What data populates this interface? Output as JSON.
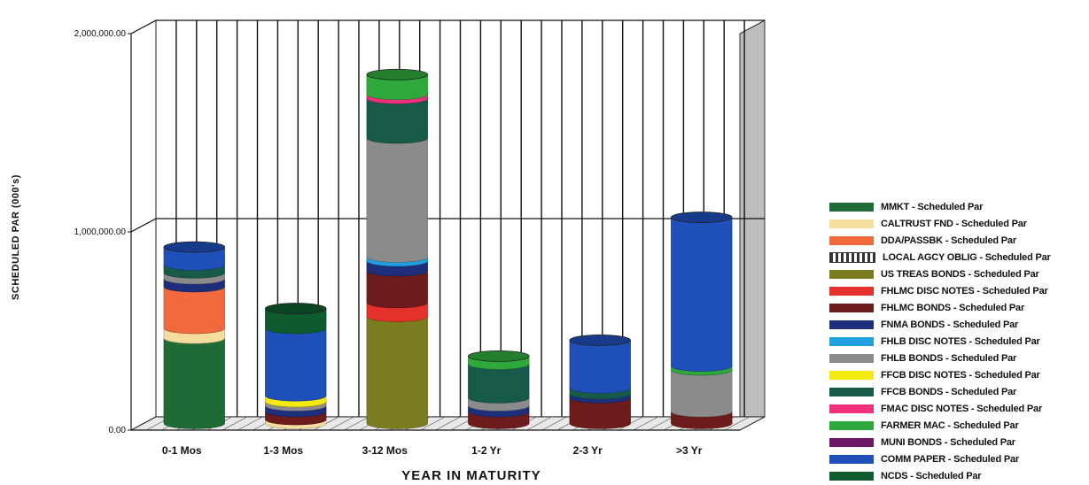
{
  "chart_data": {
    "type": "bar",
    "stacked": true,
    "style": "3d-cylinder",
    "title": "",
    "xlabel": "YEAR IN MATURITY",
    "ylabel": "SCHEDULED PAR (000's)",
    "ylim": [
      0,
      2000000
    ],
    "y_ticks": [
      {
        "value": 0,
        "label": "0.00"
      },
      {
        "value": 1000000,
        "label": "1,000,000.00"
      },
      {
        "value": 2000000,
        "label": "2,000,000.00"
      }
    ],
    "grid": true,
    "legend_position": "right",
    "categories": [
      "0-1 Mos",
      "1-3 Mos",
      "3-12 Mos",
      "1-2 Yr",
      "2-3 Yr",
      ">3 Yr"
    ],
    "series": [
      {
        "name": "MMKT - Scheduled Par",
        "color": "#1e6b35",
        "values": [
          430000,
          0,
          0,
          0,
          0,
          0
        ]
      },
      {
        "name": "CALTRUST FND - Scheduled Par",
        "color": "#f3dea0",
        "values": [
          50000,
          20000,
          0,
          0,
          0,
          0
        ]
      },
      {
        "name": "DDA/PASSBK - Scheduled Par",
        "color": "#f06a3e",
        "values": [
          210000,
          0,
          0,
          0,
          0,
          0
        ]
      },
      {
        "name": "LOCAL AGCY OBLIG - Scheduled Par",
        "color": "#ffffff",
        "values": [
          0,
          0,
          0,
          0,
          0,
          0
        ]
      },
      {
        "name": "US TREAS BONDS - Scheduled Par",
        "color": "#7b7b1f",
        "values": [
          0,
          0,
          540000,
          0,
          0,
          0
        ]
      },
      {
        "name": "FHLMC DISC NOTES - Scheduled Par",
        "color": "#e4312b",
        "values": [
          0,
          0,
          70000,
          0,
          0,
          0
        ]
      },
      {
        "name": "FHLMC BONDS - Scheduled Par",
        "color": "#6e1b1b",
        "values": [
          0,
          40000,
          160000,
          60000,
          130000,
          60000
        ]
      },
      {
        "name": "FNMA BONDS - Scheduled Par",
        "color": "#1d2f7a",
        "values": [
          40000,
          30000,
          50000,
          30000,
          20000,
          0
        ]
      },
      {
        "name": "FHLB DISC NOTES - Scheduled Par",
        "color": "#21a0e0",
        "values": [
          0,
          0,
          20000,
          0,
          0,
          0
        ]
      },
      {
        "name": "FHLB BONDS - Scheduled Par",
        "color": "#8b8b8b",
        "values": [
          30000,
          20000,
          600000,
          40000,
          0,
          210000
        ]
      },
      {
        "name": "FFCB DISC NOTES - Scheduled Par",
        "color": "#f5ea10",
        "values": [
          0,
          30000,
          0,
          0,
          0,
          0
        ]
      },
      {
        "name": "FFCB BONDS - Scheduled Par",
        "color": "#175a4a",
        "values": [
          40000,
          0,
          200000,
          170000,
          30000,
          0
        ]
      },
      {
        "name": "FMAC DISC NOTES - Scheduled Par",
        "color": "#f0307a",
        "values": [
          0,
          0,
          20000,
          0,
          0,
          0
        ]
      },
      {
        "name": "FARMER MAC - Scheduled Par",
        "color": "#2ea83c",
        "values": [
          0,
          0,
          100000,
          40000,
          0,
          20000
        ]
      },
      {
        "name": "MUNI BONDS - Scheduled Par",
        "color": "#6b1763",
        "values": [
          0,
          0,
          0,
          0,
          0,
          0
        ]
      },
      {
        "name": "COMM PAPER - Scheduled Par",
        "color": "#1f4fb8",
        "values": [
          90000,
          340000,
          0,
          0,
          240000,
          750000
        ]
      },
      {
        "name": "NCDS - Scheduled Par",
        "color": "#0f5a2e",
        "values": [
          0,
          100000,
          0,
          0,
          0,
          0
        ]
      }
    ]
  }
}
